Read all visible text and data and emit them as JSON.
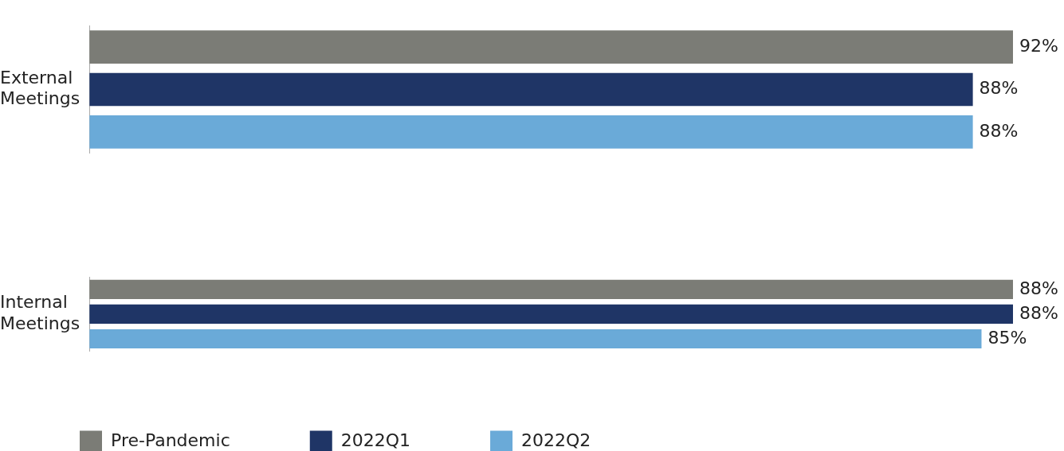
{
  "chart_data": [
    {
      "type": "bar",
      "orientation": "horizontal",
      "categories": [
        "External Meetings"
      ],
      "tick_labels": "y",
      "legend": false,
      "series": [
        {
          "color": "#7b7c76",
          "values": [
            92
          ],
          "value_labels": [
            "92%"
          ]
        },
        {
          "color": "#1f3566",
          "values": [
            88
          ],
          "value_labels": [
            "88%"
          ]
        },
        {
          "color": "#6aaad8",
          "values": [
            88
          ],
          "value_labels": [
            "88%"
          ]
        }
      ]
    },
    {
      "type": "bar",
      "orientation": "horizontal",
      "categories": [
        "Internal Meetings"
      ],
      "tick_labels": "y",
      "legend": "bottom",
      "series": [
        {
          "name": "Pre-Pandemic",
          "color": "#7b7c76",
          "values": [
            88
          ],
          "value_labels": [
            "88%"
          ]
        },
        {
          "name": "2022Q1",
          "color": "#1f3566",
          "values": [
            88
          ],
          "value_labels": [
            "88%"
          ]
        },
        {
          "name": "2022Q2",
          "color": "#6aaad8",
          "values": [
            85
          ],
          "value_labels": [
            "85%"
          ]
        }
      ]
    }
  ]
}
